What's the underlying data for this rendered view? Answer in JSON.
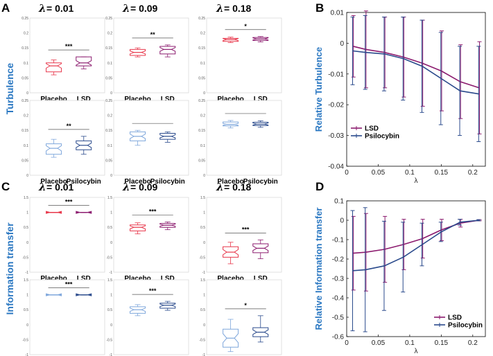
{
  "panels": {
    "A": "A",
    "B": "B",
    "C": "C",
    "D": "D"
  },
  "lambda_symbol": "λ",
  "lambda_labels": [
    "= 0.01",
    "= 0.09",
    "= 0.18"
  ],
  "row_labels": {
    "turbulence": "Turbulence",
    "info": "Information transfer"
  },
  "colors": {
    "lsd": "#8b1a6e",
    "psilo": "#2a4a8c",
    "placebo_red": "#e8364a",
    "placebo_blue": "#7fa7dc",
    "accent": "#2b78c2"
  },
  "chart_data": [
    {
      "id": "A",
      "type": "box",
      "title": "Turbulence",
      "ylim": [
        0,
        0.25
      ],
      "yticks": [
        "0.25",
        "0.2",
        "0.15",
        "0.1",
        "0.05",
        "0"
      ],
      "subplots": [
        {
          "row": 0,
          "col": 0,
          "lambda": "0.01",
          "categories": [
            "Placebo",
            "LSD"
          ],
          "sig": "***",
          "boxes": [
            {
              "q1": 0.07,
              "med": 0.09,
              "q3": 0.1,
              "lo": 0.06,
              "hi": 0.11,
              "color": "#e8364a"
            },
            {
              "q1": 0.09,
              "med": 0.1,
              "q3": 0.12,
              "lo": 0.08,
              "hi": 0.12,
              "color": "#8b1a6e"
            }
          ]
        },
        {
          "row": 0,
          "col": 1,
          "lambda": "0.09",
          "categories": [
            "Placebo",
            "LSD"
          ],
          "sig": "**",
          "boxes": [
            {
              "q1": 0.125,
              "med": 0.135,
              "q3": 0.145,
              "lo": 0.12,
              "hi": 0.15,
              "color": "#e8364a"
            },
            {
              "q1": 0.13,
              "med": 0.145,
              "q3": 0.155,
              "lo": 0.12,
              "hi": 0.16,
              "color": "#8b1a6e"
            }
          ]
        },
        {
          "row": 0,
          "col": 2,
          "lambda": "0.18",
          "categories": [
            "Placebo",
            "LSD"
          ],
          "sig": "*",
          "boxes": [
            {
              "q1": 0.172,
              "med": 0.178,
              "q3": 0.182,
              "lo": 0.168,
              "hi": 0.186,
              "color": "#e8364a"
            },
            {
              "q1": 0.175,
              "med": 0.18,
              "q3": 0.185,
              "lo": 0.17,
              "hi": 0.188,
              "color": "#8b1a6e"
            }
          ]
        },
        {
          "row": 1,
          "col": 0,
          "lambda": "0.01",
          "categories": [
            "Placebo",
            "Psilocybin"
          ],
          "sig": "**",
          "boxes": [
            {
              "q1": 0.07,
              "med": 0.09,
              "q3": 0.105,
              "lo": 0.06,
              "hi": 0.12,
              "color": "#7fa7dc"
            },
            {
              "q1": 0.085,
              "med": 0.1,
              "q3": 0.115,
              "lo": 0.07,
              "hi": 0.13,
              "color": "#2a4a8c"
            }
          ]
        },
        {
          "row": 1,
          "col": 1,
          "lambda": "0.09",
          "categories": [
            "Placebo",
            "Psilocybin"
          ],
          "sig": "",
          "boxes": [
            {
              "q1": 0.115,
              "med": 0.13,
              "q3": 0.145,
              "lo": 0.1,
              "hi": 0.15,
              "color": "#7fa7dc"
            },
            {
              "q1": 0.12,
              "med": 0.13,
              "q3": 0.14,
              "lo": 0.11,
              "hi": 0.145,
              "color": "#2a4a8c"
            }
          ]
        },
        {
          "row": 1,
          "col": 2,
          "lambda": "0.18",
          "categories": [
            "Placebo",
            "Psilocybin"
          ],
          "sig": "",
          "boxes": [
            {
              "q1": 0.165,
              "med": 0.17,
              "q3": 0.178,
              "lo": 0.158,
              "hi": 0.183,
              "color": "#7fa7dc"
            },
            {
              "q1": 0.166,
              "med": 0.171,
              "q3": 0.177,
              "lo": 0.16,
              "hi": 0.182,
              "color": "#2a4a8c"
            }
          ]
        }
      ]
    },
    {
      "id": "B",
      "type": "line",
      "xlabel": "λ",
      "ylabel": "Relative Turbulence",
      "xlim": [
        0,
        0.22
      ],
      "ylim": [
        -0.04,
        0.01
      ],
      "xticks": [
        "0",
        "0.05",
        "0.1",
        "0.15",
        "0.2"
      ],
      "yticks": [
        "0.01",
        "0",
        "-0.01",
        "-0.02",
        "-0.03",
        "-0.04"
      ],
      "x": [
        0.01,
        0.03,
        0.06,
        0.09,
        0.12,
        0.15,
        0.18,
        0.21
      ],
      "series": [
        {
          "name": "LSD",
          "color": "#8b1a6e",
          "values": [
            -0.001,
            -0.002,
            -0.003,
            -0.0045,
            -0.0065,
            -0.009,
            -0.0125,
            -0.0145
          ],
          "err": [
            0.01,
            0.0125,
            0.0115,
            0.013,
            0.014,
            0.013,
            0.012,
            0.015
          ]
        },
        {
          "name": "Psilocybin",
          "color": "#2a4a8c",
          "values": [
            -0.0025,
            -0.003,
            -0.0035,
            -0.005,
            -0.0075,
            -0.0115,
            -0.0155,
            -0.0165
          ],
          "err": [
            0.011,
            0.012,
            0.012,
            0.0135,
            0.015,
            0.015,
            0.0145,
            0.0155
          ]
        }
      ]
    },
    {
      "id": "C",
      "type": "box",
      "title": "Information transfer",
      "ylim": [
        -1,
        1.5
      ],
      "yticks": [
        "1.5",
        "1",
        "0.5",
        "0",
        "-0.5",
        "-1"
      ],
      "subplots": [
        {
          "row": 0,
          "col": 0,
          "lambda": "0.01",
          "categories": [
            "Placebo",
            "LSD"
          ],
          "sig": "***",
          "boxes": [
            {
              "q1": 0.99,
              "med": 1.0,
              "q3": 1.0,
              "lo": 0.99,
              "hi": 1.0,
              "color": "#e8364a"
            },
            {
              "q1": 0.995,
              "med": 1.0,
              "q3": 1.0,
              "lo": 0.99,
              "hi": 1.0,
              "color": "#8b1a6e"
            }
          ]
        },
        {
          "row": 0,
          "col": 1,
          "lambda": "0.09",
          "categories": [
            "Placebo",
            "LSD"
          ],
          "sig": "***",
          "boxes": [
            {
              "q1": 0.38,
              "med": 0.5,
              "q3": 0.58,
              "lo": 0.28,
              "hi": 0.65,
              "color": "#e8364a"
            },
            {
              "q1": 0.5,
              "med": 0.57,
              "q3": 0.63,
              "lo": 0.42,
              "hi": 0.68,
              "color": "#8b1a6e"
            }
          ]
        },
        {
          "row": 0,
          "col": 2,
          "lambda": "0.18",
          "categories": [
            "Placebo",
            "LSD"
          ],
          "sig": "***",
          "boxes": [
            {
              "q1": -0.5,
              "med": -0.33,
              "q3": -0.15,
              "lo": -0.72,
              "hi": 0.0,
              "color": "#e8364a"
            },
            {
              "q1": -0.35,
              "med": -0.2,
              "q3": -0.05,
              "lo": -0.55,
              "hi": 0.08,
              "color": "#8b1a6e"
            }
          ]
        },
        {
          "row": 1,
          "col": 0,
          "lambda": "0.01",
          "categories": [
            "Placebo",
            "Psilocybin"
          ],
          "sig": "***",
          "boxes": [
            {
              "q1": 0.99,
              "med": 1.0,
              "q3": 1.0,
              "lo": 0.99,
              "hi": 1.0,
              "color": "#7fa7dc"
            },
            {
              "q1": 0.995,
              "med": 1.0,
              "q3": 1.0,
              "lo": 0.99,
              "hi": 1.0,
              "color": "#2a4a8c"
            }
          ]
        },
        {
          "row": 1,
          "col": 1,
          "lambda": "0.09",
          "categories": [
            "Placebo",
            "Psilocybin"
          ],
          "sig": "***",
          "boxes": [
            {
              "q1": 0.38,
              "med": 0.5,
              "q3": 0.6,
              "lo": 0.3,
              "hi": 0.67,
              "color": "#7fa7dc"
            },
            {
              "q1": 0.55,
              "med": 0.65,
              "q3": 0.72,
              "lo": 0.48,
              "hi": 0.78,
              "color": "#2a4a8c"
            }
          ]
        },
        {
          "row": 1,
          "col": 2,
          "lambda": "0.18",
          "categories": [
            "Placebo",
            "Psilocybin"
          ],
          "sig": "*",
          "boxes": [
            {
              "q1": -0.75,
              "med": -0.45,
              "q3": -0.15,
              "lo": -0.9,
              "hi": 0.18,
              "color": "#7fa7dc"
            },
            {
              "q1": -0.4,
              "med": -0.25,
              "q3": -0.1,
              "lo": -0.58,
              "hi": 0.3,
              "color": "#2a4a8c"
            }
          ]
        }
      ]
    },
    {
      "id": "D",
      "type": "line",
      "xlabel": "λ",
      "ylabel": "Relative Information transfer",
      "xlim": [
        0,
        0.22
      ],
      "ylim": [
        -0.6,
        0.1
      ],
      "xticks": [
        "0",
        "0.05",
        "0.1",
        "0.15",
        "0.2"
      ],
      "yticks": [
        "0.1",
        "0",
        "-0.1",
        "-0.2",
        "-0.3",
        "-0.4",
        "-0.5",
        "-0.6"
      ],
      "x": [
        0.01,
        0.03,
        0.06,
        0.09,
        0.12,
        0.15,
        0.18,
        0.21
      ],
      "series": [
        {
          "name": "LSD",
          "color": "#8b1a6e",
          "values": [
            -0.17,
            -0.165,
            -0.15,
            -0.125,
            -0.095,
            -0.05,
            -0.015,
            0.0
          ],
          "err": [
            0.19,
            0.2,
            0.17,
            0.13,
            0.1,
            0.055,
            0.02,
            0.003
          ]
        },
        {
          "name": "Psilocybin",
          "color": "#2a4a8c",
          "values": [
            -0.26,
            -0.255,
            -0.235,
            -0.19,
            -0.125,
            -0.06,
            -0.01,
            0.0
          ],
          "err": [
            0.31,
            0.32,
            0.23,
            0.18,
            0.11,
            0.05,
            0.015,
            0.003
          ]
        }
      ]
    }
  ]
}
